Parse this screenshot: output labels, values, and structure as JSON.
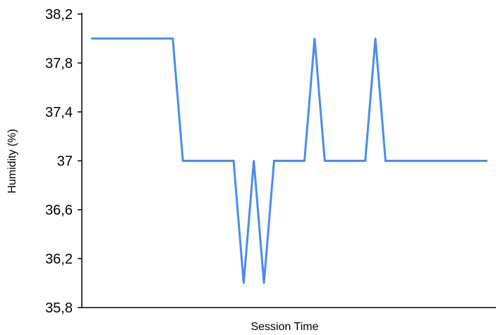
{
  "chart_data": {
    "type": "line",
    "title": "",
    "xlabel": "Session Time",
    "ylabel": "Humidity (%)",
    "ylim": [
      35.8,
      38.2
    ],
    "yticks": [
      "38,2",
      "37,8",
      "37,4",
      "37",
      "36,6",
      "36,2",
      "35,8"
    ],
    "ytick_values": [
      38.2,
      37.8,
      37.4,
      37.0,
      36.6,
      36.2,
      35.8
    ],
    "grid": false,
    "legend": "none",
    "series": [
      {
        "color": "#4a8cec",
        "values": [
          38,
          38,
          38,
          38,
          38,
          38,
          38,
          38,
          38,
          37,
          37,
          37,
          37,
          37,
          37,
          36,
          37,
          36,
          37,
          37,
          37,
          37,
          38,
          37,
          37,
          37,
          37,
          37,
          38,
          37,
          37,
          37,
          37,
          37,
          37,
          37,
          37,
          37,
          37,
          37
        ]
      }
    ]
  }
}
